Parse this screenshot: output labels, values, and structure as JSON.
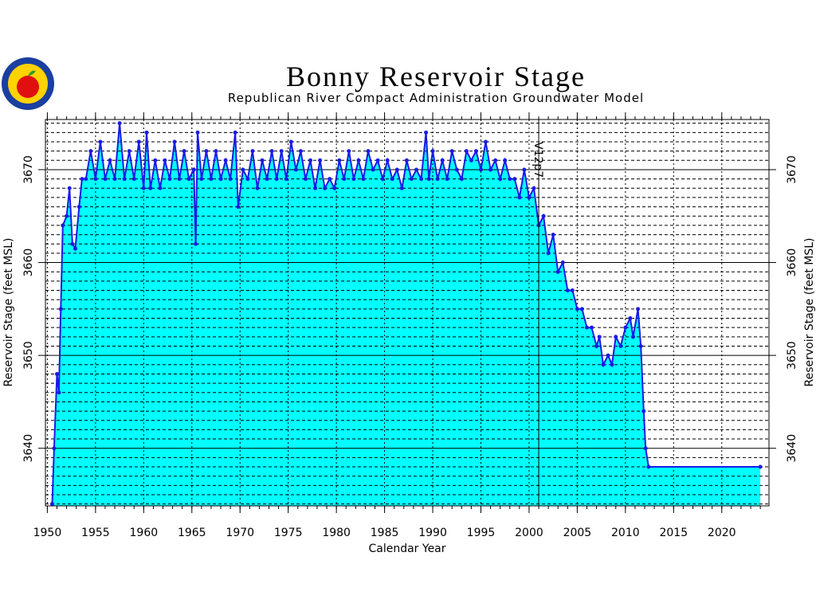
{
  "chart_data": {
    "type": "area",
    "title": "Bonny Reservoir Stage",
    "subtitle": "Republican River Compact Administration Groundwater Model",
    "xlabel": "Calendar Year",
    "ylabel": "Reservoir Stage (feet MSL)",
    "y2label": "Reservoir Stage (feet MSL)",
    "annotation": {
      "text": "V12p7",
      "x": 2001
    },
    "line_color": "#1a1ae6",
    "fill_color": "#00ffff",
    "xlim": [
      1949.8,
      2024.9
    ],
    "xticks": [
      1950,
      1955,
      1960,
      1965,
      1970,
      1975,
      1980,
      1985,
      1990,
      1995,
      2000,
      2005,
      2010,
      2015,
      2020
    ],
    "xminor_step": 1,
    "ylim": [
      3633.8,
      3675.4
    ],
    "yticks": [
      3640,
      3650,
      3660,
      3670
    ],
    "y2lim": [
      3633.8,
      3675.4
    ],
    "y2ticks": [
      3640,
      3650,
      3660,
      3670
    ],
    "yminor_step": 1,
    "grid": true,
    "x": [
      1950.5,
      1950.7,
      1951.0,
      1951.2,
      1951.4,
      1951.6,
      1952.0,
      1952.3,
      1952.6,
      1952.9,
      1953.3,
      1953.6,
      1954.0,
      1954.5,
      1955.0,
      1955.5,
      1956.0,
      1956.5,
      1957.0,
      1957.5,
      1958.0,
      1958.5,
      1959.0,
      1959.5,
      1960.0,
      1960.3,
      1960.7,
      1961.2,
      1961.7,
      1962.2,
      1962.7,
      1963.2,
      1963.7,
      1964.2,
      1964.7,
      1965.2,
      1965.4,
      1965.6,
      1966.0,
      1966.5,
      1967.0,
      1967.5,
      1968.0,
      1968.5,
      1969.0,
      1969.5,
      1969.8,
      1970.3,
      1970.8,
      1971.3,
      1971.8,
      1972.3,
      1972.8,
      1973.3,
      1973.8,
      1974.3,
      1974.8,
      1975.3,
      1975.8,
      1976.3,
      1976.8,
      1977.3,
      1977.8,
      1978.3,
      1978.8,
      1979.3,
      1979.8,
      1980.3,
      1980.8,
      1981.3,
      1981.8,
      1982.3,
      1982.8,
      1983.3,
      1983.8,
      1984.3,
      1984.8,
      1985.3,
      1985.8,
      1986.3,
      1986.8,
      1987.3,
      1987.8,
      1988.3,
      1988.8,
      1989.3,
      1989.6,
      1990.0,
      1990.5,
      1991.0,
      1991.5,
      1992.0,
      1992.5,
      1993.0,
      1993.5,
      1994.0,
      1994.5,
      1995.0,
      1995.5,
      1996.0,
      1996.5,
      1997.0,
      1997.5,
      1998.0,
      1998.5,
      1999.0,
      1999.5,
      2000.0,
      2000.5,
      2001.0,
      2001.5,
      2002.0,
      2002.5,
      2003.0,
      2003.5,
      2004.0,
      2004.5,
      2005.0,
      2005.5,
      2006.0,
      2006.5,
      2007.0,
      2007.3,
      2007.7,
      2008.2,
      2008.6,
      2009.0,
      2009.5,
      2010.0,
      2010.5,
      2010.8,
      2011.3,
      2011.6,
      2011.9,
      2012.1,
      2012.4,
      2024.0
    ],
    "values": [
      3634,
      3640,
      3648,
      3646,
      3655,
      3664,
      3665,
      3668,
      3662,
      3661.5,
      3666,
      3669,
      3669,
      3672,
      3669,
      3673,
      3669,
      3671,
      3669,
      3675,
      3669,
      3672,
      3669,
      3673,
      3668,
      3674,
      3668,
      3671,
      3668,
      3671,
      3669,
      3673,
      3669,
      3672,
      3669,
      3670,
      3662,
      3674,
      3669,
      3672,
      3669,
      3672,
      3669,
      3671,
      3669,
      3674,
      3666,
      3670,
      3669,
      3672,
      3668,
      3671,
      3669,
      3672,
      3669,
      3672,
      3669,
      3673,
      3670,
      3672,
      3669,
      3671,
      3668,
      3671,
      3668,
      3669,
      3668,
      3671,
      3669,
      3672,
      3669,
      3671,
      3669,
      3672,
      3670,
      3671,
      3669,
      3671,
      3669,
      3670,
      3668,
      3671,
      3669,
      3670,
      3669,
      3674,
      3669,
      3672,
      3669,
      3671,
      3669,
      3672,
      3670,
      3669,
      3672,
      3671,
      3672,
      3670,
      3673,
      3670,
      3671,
      3669,
      3671,
      3669,
      3669,
      3667,
      3670,
      3667,
      3668,
      3664,
      3665,
      3661,
      3663,
      3659,
      3660,
      3657,
      3657,
      3655,
      3655,
      3653,
      3653,
      3651,
      3652,
      3649,
      3650,
      3649,
      3652,
      3651,
      3653,
      3654,
      3652,
      3655,
      3651,
      3644,
      3640,
      3638,
      3638
    ]
  }
}
